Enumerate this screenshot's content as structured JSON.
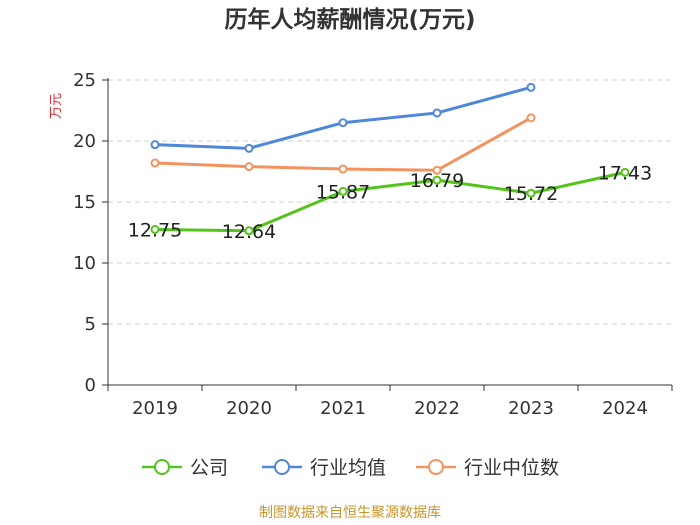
{
  "chart_data": {
    "type": "line",
    "title": "历年人均薪酬情况(万元)",
    "ylabel": "万元",
    "xlabel": "",
    "categories": [
      "2019",
      "2020",
      "2021",
      "2022",
      "2023",
      "2024"
    ],
    "ylim": [
      0,
      25
    ],
    "yticks": [
      0,
      5,
      10,
      15,
      20,
      25
    ],
    "grid": true,
    "legend_position": "bottom",
    "series": [
      {
        "name": "公司",
        "color": "#52c41a",
        "values": [
          12.75,
          12.64,
          15.87,
          16.79,
          15.72,
          17.43
        ],
        "labels": [
          "12.75",
          "12.64",
          "15.87",
          "16.79",
          "15.72",
          "17.43"
        ]
      },
      {
        "name": "行业均值",
        "color": "#4f87d9",
        "values": [
          19.7,
          19.4,
          21.5,
          22.3,
          24.4,
          null
        ]
      },
      {
        "name": "行业中位数",
        "color": "#f3935f",
        "values": [
          18.2,
          17.9,
          17.7,
          17.6,
          21.9,
          null
        ]
      }
    ],
    "source": "制图数据来自恒生聚源数据库"
  }
}
